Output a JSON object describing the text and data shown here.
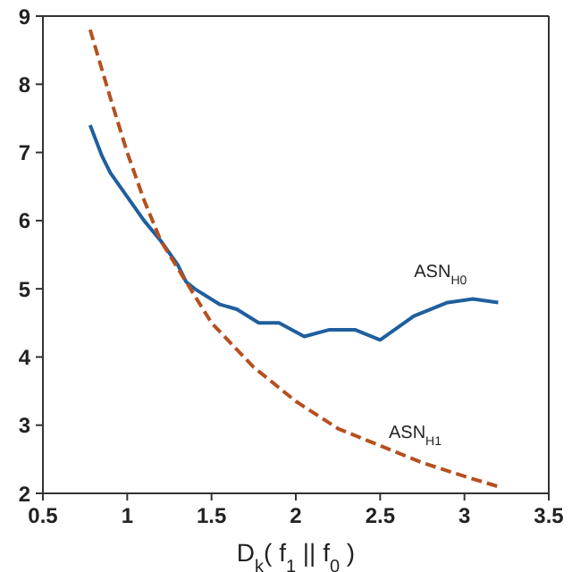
{
  "chart_data": {
    "type": "line",
    "xlabel": "D$_{k}$( f$_{1}$ || f$_{0}$ )",
    "xlim": [
      0.5,
      3.5
    ],
    "xticks": [
      0.5,
      1,
      1.5,
      2,
      2.5,
      3,
      3.5
    ],
    "ylim": [
      2,
      9
    ],
    "yticks": [
      2,
      3,
      4,
      5,
      6,
      7,
      8,
      9
    ],
    "marker": "none",
    "series": [
      {
        "name": "ASN$_{H0}$",
        "color": "#1f5f9e",
        "line_style": "solid",
        "x": [
          0.78,
          0.85,
          0.9,
          1.0,
          1.1,
          1.2,
          1.3,
          1.35,
          1.4,
          1.55,
          1.65,
          1.78,
          1.9,
          2.05,
          2.2,
          2.35,
          2.5,
          2.7,
          2.9,
          3.05,
          3.2
        ],
        "values": [
          7.4,
          6.95,
          6.7,
          6.35,
          6.0,
          5.7,
          5.35,
          5.1,
          5.0,
          4.77,
          4.7,
          4.5,
          4.5,
          4.3,
          4.4,
          4.4,
          4.25,
          4.6,
          4.8,
          4.85,
          4.8
        ]
      },
      {
        "name": "ASN$_{H1}$",
        "color": "#b5501f",
        "line_style": "dashed",
        "x": [
          0.78,
          0.9,
          1.0,
          1.1,
          1.2,
          1.35,
          1.5,
          1.75,
          2.0,
          2.25,
          2.5,
          2.75,
          3.0,
          3.2
        ],
        "values": [
          8.8,
          7.8,
          7.0,
          6.3,
          5.7,
          5.1,
          4.5,
          3.85,
          3.35,
          2.95,
          2.7,
          2.45,
          2.25,
          2.1
        ]
      }
    ]
  }
}
